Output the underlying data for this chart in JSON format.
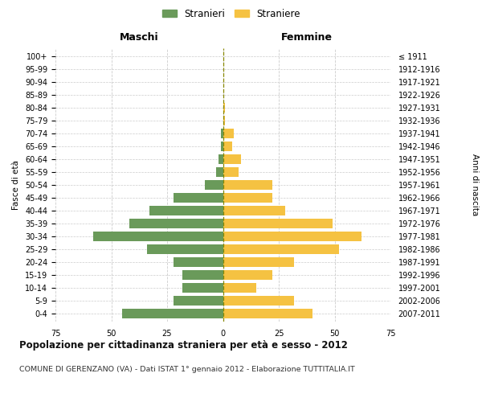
{
  "age_groups": [
    "100+",
    "95-99",
    "90-94",
    "85-89",
    "80-84",
    "75-79",
    "70-74",
    "65-69",
    "60-64",
    "55-59",
    "50-54",
    "45-49",
    "40-44",
    "35-39",
    "30-34",
    "25-29",
    "20-24",
    "15-19",
    "10-14",
    "5-9",
    "0-4"
  ],
  "birth_years": [
    "≤ 1911",
    "1912-1916",
    "1917-1921",
    "1922-1926",
    "1927-1931",
    "1932-1936",
    "1937-1941",
    "1942-1946",
    "1947-1951",
    "1952-1956",
    "1957-1961",
    "1962-1966",
    "1967-1971",
    "1972-1976",
    "1977-1981",
    "1982-1986",
    "1987-1991",
    "1992-1996",
    "1997-2001",
    "2002-2006",
    "2007-2011"
  ],
  "maschi": [
    0,
    0,
    0,
    0,
    0,
    0,
    1,
    1,
    2,
    3,
    8,
    22,
    33,
    42,
    58,
    34,
    22,
    18,
    18,
    22,
    45
  ],
  "femmine": [
    0,
    0,
    0,
    0,
    1,
    1,
    5,
    4,
    8,
    7,
    22,
    22,
    28,
    49,
    62,
    52,
    32,
    22,
    15,
    32,
    40
  ],
  "male_color": "#6a9a5a",
  "female_color": "#f5c242",
  "center_line_color": "#888800",
  "grid_color": "#cccccc",
  "bg_color": "#ffffff",
  "title": "Popolazione per cittadinanza straniera per età e sesso - 2012",
  "subtitle": "COMUNE DI GERENZANO (VA) - Dati ISTAT 1° gennaio 2012 - Elaborazione TUTTITALIA.IT",
  "xlabel_left": "Maschi",
  "xlabel_right": "Femmine",
  "ylabel_left": "Fasce di età",
  "ylabel_right": "Anni di nascita",
  "legend_male": "Stranieri",
  "legend_female": "Straniere",
  "xlim": 75,
  "bar_height": 0.75
}
